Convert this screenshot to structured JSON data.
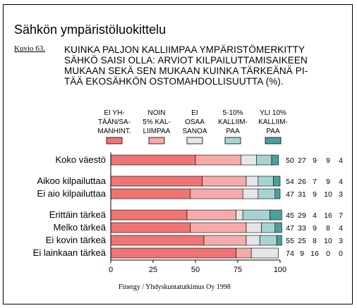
{
  "title": "Sähkön ympäristöluokittelu",
  "figure": {
    "label": "Kuvio 63.",
    "description_lines": [
      "KUINKA PALJON KALLIIMPAA YMPÄRISTÖMERKITTY",
      "SÄHKÖ SAISI OLLA: ARVIOT KILPAILUTTAMISAIKEEN",
      "MUKAAN SEKÄ SEN MUKAAN KUINKA TÄRKEÄNÄ PI-",
      "TÄÄ EKOSÄHKÖN OSTOMAHDOLLISUUTTA (%)."
    ]
  },
  "source": "Finergy / Yhdyskuntatutkimus Oy 1998",
  "chart_data": {
    "type": "bar",
    "orientation": "horizontal",
    "stacked": true,
    "xlim": [
      0,
      100
    ],
    "xticks": [
      0,
      25,
      50,
      75,
      100
    ],
    "grid": false,
    "legend_position": "top",
    "categories": [
      "Koko väestö",
      "Aikoo kilpailuttaa",
      "Ei aio kilpailuttaa",
      "Erittäin tärkeä",
      "Melko tärkeä",
      "Ei kovin tärkeä",
      "Ei lainkaan tärkeä"
    ],
    "groups": [
      [
        0
      ],
      [
        1,
        2
      ],
      [
        3,
        4,
        5,
        6
      ]
    ],
    "series": [
      {
        "name": [
          "EI YH-",
          "TÄÄN/SA-",
          "MANHINT."
        ],
        "color": "#f07474",
        "values": [
          50,
          54,
          47,
          45,
          47,
          55,
          74
        ]
      },
      {
        "name": [
          "NOIN",
          "5% KAL-",
          "LIIMPAA"
        ],
        "color": "#f7aaaa",
        "values": [
          27,
          26,
          31,
          29,
          33,
          25,
          9
        ]
      },
      {
        "name": [
          "EI",
          "OSAA",
          "SANOA"
        ],
        "color": "#e6e6e6",
        "values": [
          9,
          7,
          9,
          4,
          9,
          8,
          16
        ]
      },
      {
        "name": [
          "5-10%",
          "KALLIIM-",
          "PAA"
        ],
        "color": "#a7d4d2",
        "values": [
          9,
          9,
          10,
          16,
          8,
          10,
          0
        ]
      },
      {
        "name": [
          "YLI 10%",
          "KALLIIM-",
          "PAA"
        ],
        "color": "#4aa19c",
        "values": [
          4,
          4,
          3,
          7,
          4,
          3,
          0
        ]
      }
    ]
  }
}
